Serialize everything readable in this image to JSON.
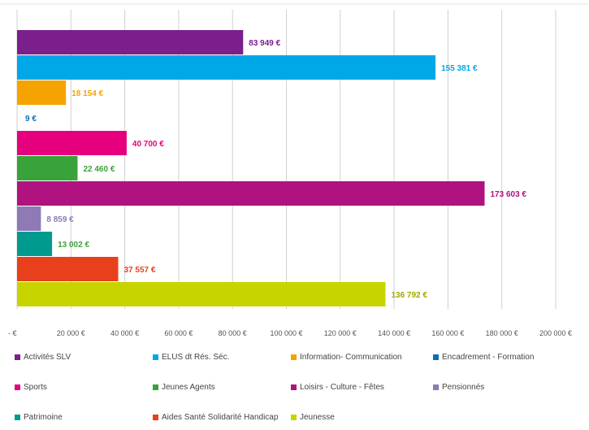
{
  "chart_data": {
    "type": "bar",
    "orientation": "horizontal",
    "title": "",
    "xlabel": "",
    "ylabel": "",
    "xlim": [
      0,
      200000
    ],
    "grid": true,
    "legend_position": "bottom",
    "tick_labels": [
      "-  €",
      "20 000 €",
      "40 000 €",
      "60 000 €",
      "80 000 €",
      "100 000 €",
      "120 000 €",
      "140 000 €",
      "160 000 €",
      "180 000 €",
      "200 000 €"
    ],
    "series": [
      {
        "name": "Activités SLV",
        "value": 83949,
        "label": "83 949 €",
        "color": "#7a1f8c"
      },
      {
        "name": "ELUS dt Rés. Séc.",
        "value": 155381,
        "label": "155 381 €",
        "color": "#00a8e8"
      },
      {
        "name": "Information- Communication",
        "value": 18154,
        "label": "18 154 €",
        "color": "#f5a300"
      },
      {
        "name": "Encadrement - Formation",
        "value": 9,
        "label": "9 €",
        "color": "#0a6fb5"
      },
      {
        "name": "Sports",
        "value": 40700,
        "label": "40 700 €",
        "color": "#e6007e"
      },
      {
        "name": "Jeunes Agents",
        "value": 22460,
        "label": "22 460 €",
        "color": "#3aa23a"
      },
      {
        "name": "Loisirs - Culture - Fêtes",
        "value": 173603,
        "label": "173 603 €",
        "color": "#b0127f"
      },
      {
        "name": "Pensionnés",
        "value": 8859,
        "label": "8 859 €",
        "color": "#8e7ab5"
      },
      {
        "name": "Patrimoine",
        "value": 13002,
        "label": "13 002 €",
        "color": "#009a8e"
      },
      {
        "name": "Aides Santé Solidarité Handicap",
        "value": 37557,
        "label": "37 557 €",
        "color": "#e8401c"
      },
      {
        "name": "Jeunesse",
        "value": 136792,
        "label": "136 792 €",
        "color": "#c8d400"
      }
    ],
    "label_colors": [
      "#7a1f8c",
      "#00a8e8",
      "#f5a300",
      "#0a6fb5",
      "#e6007e",
      "#3aa23a",
      "#b0127f",
      "#8e7ab5",
      "#3aa23a",
      "#e8401c",
      "#a0a800"
    ]
  }
}
